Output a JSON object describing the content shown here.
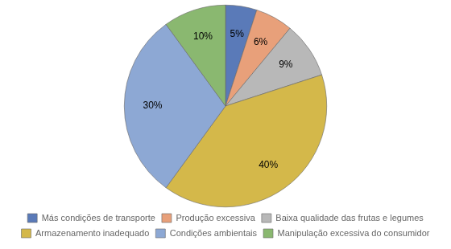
{
  "chart_data": {
    "type": "pie",
    "categories": [
      "Más condições de transporte",
      "Produção excessiva",
      "Baixa qualidade das frutas e legumes",
      "Armazenamento inadequado",
      "Condições ambientais",
      "Manipulação excessiva do consumidor"
    ],
    "values": [
      5,
      6,
      9,
      40,
      30,
      10
    ],
    "value_labels": [
      "5%",
      "6%",
      "9%",
      "40%",
      "30%",
      "10%"
    ],
    "colors": [
      "#5a7ab8",
      "#e8a07a",
      "#b8b8b8",
      "#d4b84a",
      "#8da8d4",
      "#8ab870"
    ],
    "data_labels": true,
    "legend": "bottom"
  }
}
